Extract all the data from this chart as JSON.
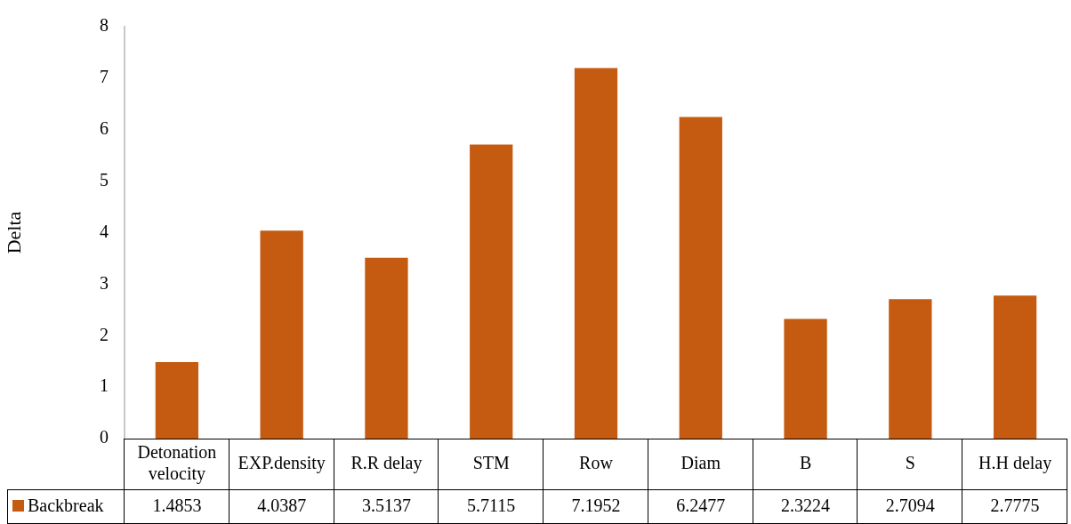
{
  "chart_data": {
    "type": "bar",
    "ylabel": "Delta",
    "categories": [
      "Detonation velocity",
      "EXP.density",
      "R.R delay",
      "STM",
      "Row",
      "Diam",
      "B",
      "S",
      "H.H delay"
    ],
    "series": [
      {
        "name": "Backbreak",
        "color": "#c55a11",
        "values": [
          1.4853,
          4.0387,
          3.5137,
          5.7115,
          7.1952,
          6.2477,
          2.3224,
          2.7094,
          2.7775
        ]
      }
    ],
    "ylim": [
      0,
      8
    ],
    "yticks": [
      0,
      1,
      2,
      3,
      4,
      5,
      6,
      7,
      8
    ],
    "grid": false,
    "legend": "bottom",
    "data_labels": true
  }
}
